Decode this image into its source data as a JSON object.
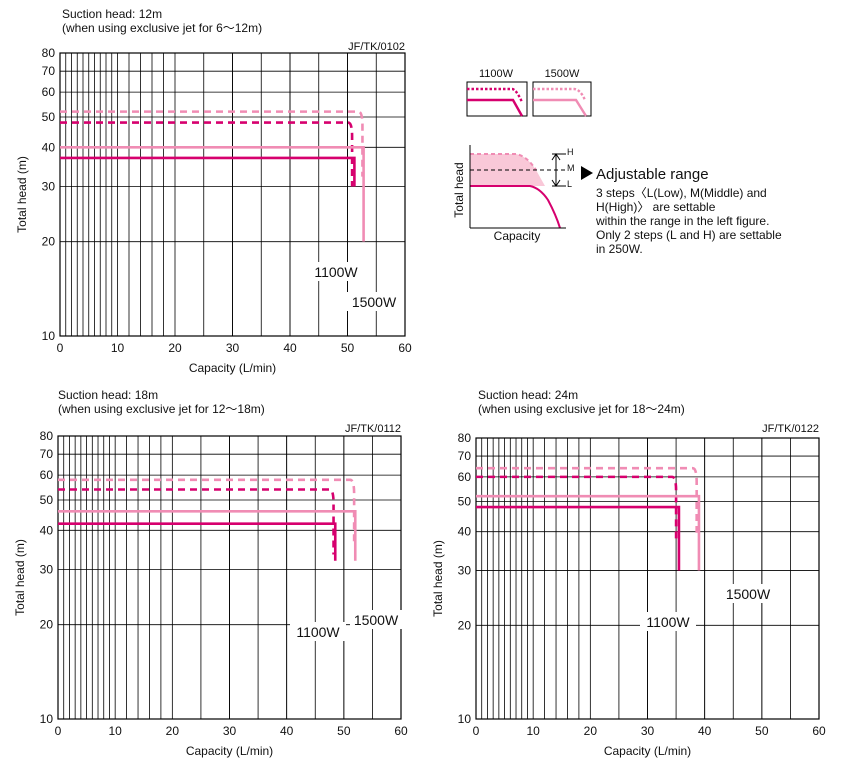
{
  "colors": {
    "c1100": "#d6006e",
    "c1500": "#f08cb4",
    "shade": "#f9c8d8",
    "grid": "#000000"
  },
  "legend": {
    "label_1100": "1100W",
    "label_1500": "1500W"
  },
  "adjustable": {
    "h": "H",
    "m": "M",
    "l": "L",
    "ylabel": "Total head",
    "xlabel": "Capacity",
    "title": "Adjustable range",
    "lines": [
      "3 steps〈L(Low), M(Middle) and",
      "H(High)〉 are settable",
      "within the range in the left figure.",
      "Only 2 steps (L and H) are settable",
      "in 250W."
    ]
  },
  "chart_data": [
    {
      "type": "line",
      "title": "Suction head: 12m",
      "subtitle": "(when using exclusive jet for 6～12m)",
      "code": "JF/TK/0102",
      "xlabel": "Capacity (L/min)",
      "ylabel": "Total head (m)",
      "xlim": [
        0,
        60
      ],
      "ylim": [
        10,
        80
      ],
      "yscale": "log",
      "xticks": [
        0,
        10,
        20,
        30,
        40,
        50,
        60
      ],
      "yticks": [
        10,
        20,
        30,
        40,
        50,
        60,
        70,
        80
      ],
      "grid": true,
      "curve_labels": {
        "1100W": "1100W",
        "1500W": "1500W"
      },
      "series": [
        {
          "name": "1100W",
          "step": "H",
          "dashed": true,
          "head": 48,
          "cutoff": 50.8,
          "min_head": 30
        },
        {
          "name": "1100W",
          "step": "L",
          "dashed": false,
          "head": 37,
          "cutoff": 51.2,
          "min_head": 30
        },
        {
          "name": "1500W",
          "step": "H",
          "dashed": true,
          "head": 52,
          "cutoff": 52.6,
          "min_head": 20
        },
        {
          "name": "1500W",
          "step": "L",
          "dashed": false,
          "head": 40,
          "cutoff": 52.8,
          "min_head": 20
        }
      ]
    },
    {
      "type": "line",
      "title": "Suction head: 18m",
      "subtitle": "(when using exclusive jet for 12～18m)",
      "code": "JF/TK/0112",
      "xlabel": "Capacity (L/min)",
      "ylabel": "Total head (m)",
      "xlim": [
        0,
        60
      ],
      "ylim": [
        10,
        80
      ],
      "yscale": "log",
      "xticks": [
        0,
        10,
        20,
        30,
        40,
        50,
        60
      ],
      "yticks": [
        10,
        20,
        30,
        40,
        50,
        60,
        70,
        80
      ],
      "grid": true,
      "curve_labels": {
        "1100W": "1100W",
        "1500W": "1500W"
      },
      "series": [
        {
          "name": "1100W",
          "step": "H",
          "dashed": true,
          "head": 54,
          "cutoff": 48.2,
          "min_head": 32
        },
        {
          "name": "1100W",
          "step": "L",
          "dashed": false,
          "head": 42,
          "cutoff": 48.5,
          "min_head": 32
        },
        {
          "name": "1500W",
          "step": "H",
          "dashed": true,
          "head": 58,
          "cutoff": 51.8,
          "min_head": 32
        },
        {
          "name": "1500W",
          "step": "L",
          "dashed": false,
          "head": 46,
          "cutoff": 52.0,
          "min_head": 32
        }
      ]
    },
    {
      "type": "line",
      "title": "Suction head: 24m",
      "subtitle": "(when using exclusive jet for 18～24m)",
      "code": "JF/TK/0122",
      "xlabel": "Capacity (L/min)",
      "ylabel": "Total head (m)",
      "xlim": [
        0,
        60
      ],
      "ylim": [
        10,
        80
      ],
      "yscale": "log",
      "xticks": [
        0,
        10,
        20,
        30,
        40,
        50,
        60
      ],
      "yticks": [
        10,
        20,
        30,
        40,
        50,
        60,
        70,
        80
      ],
      "grid": true,
      "curve_labels": {
        "1100W": "1100W",
        "1500W": "1500W"
      },
      "series": [
        {
          "name": "1100W",
          "step": "H",
          "dashed": true,
          "head": 60,
          "cutoff": 35.0,
          "min_head": 30
        },
        {
          "name": "1100W",
          "step": "L",
          "dashed": false,
          "head": 48,
          "cutoff": 35.5,
          "min_head": 30
        },
        {
          "name": "1500W",
          "step": "H",
          "dashed": true,
          "head": 64,
          "cutoff": 38.6,
          "min_head": 30
        },
        {
          "name": "1500W",
          "step": "L",
          "dashed": false,
          "head": 52,
          "cutoff": 39.0,
          "min_head": 30
        }
      ]
    }
  ]
}
